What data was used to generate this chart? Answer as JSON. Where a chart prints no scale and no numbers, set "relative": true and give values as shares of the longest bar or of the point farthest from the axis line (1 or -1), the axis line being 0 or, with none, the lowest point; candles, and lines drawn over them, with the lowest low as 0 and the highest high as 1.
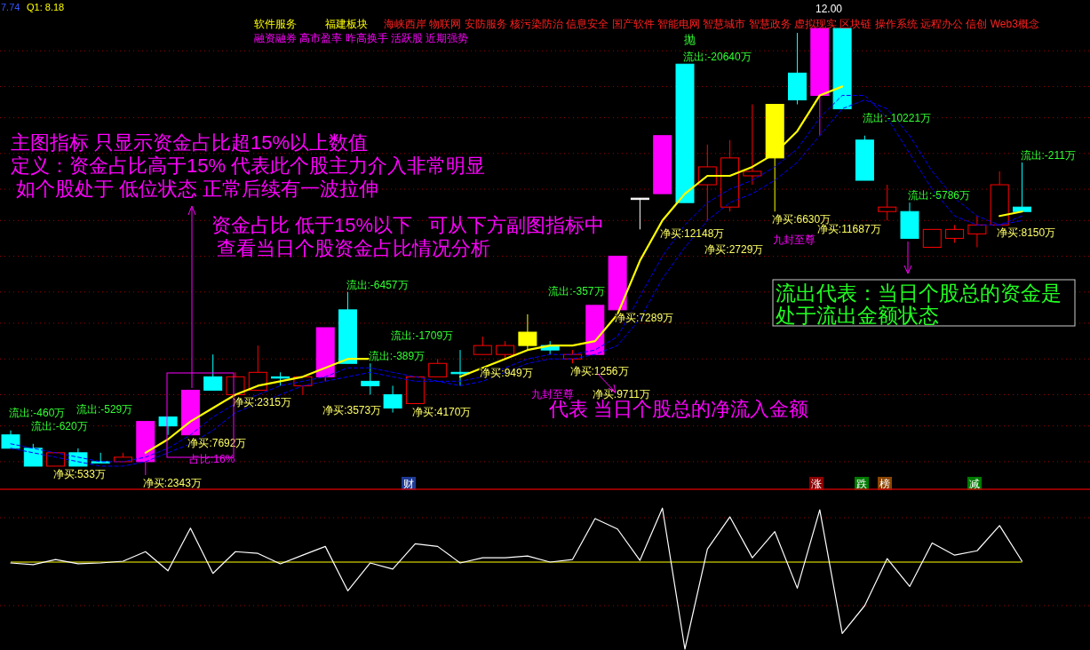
{
  "chart_data": [
    {
      "type": "candlestick",
      "relative": true,
      "ref_lines": [
        {
          "axis": "y",
          "value": 0.95,
          "color": "#a00000",
          "line_style": "dotted"
        },
        {
          "axis": "y",
          "value": 0.87,
          "color": "#a00000",
          "line_style": "dotted"
        },
        {
          "axis": "y",
          "value": 0.8,
          "color": "#a00000",
          "line_style": "dotted"
        },
        {
          "axis": "y",
          "value": 0.72,
          "color": "#a00000",
          "line_style": "dotted"
        },
        {
          "axis": "y",
          "value": 0.64,
          "color": "#a00000",
          "line_style": "dotted"
        },
        {
          "axis": "y",
          "value": 0.57,
          "color": "#a00000",
          "line_style": "dotted"
        },
        {
          "axis": "y",
          "value": 0.49,
          "color": "#a00000",
          "line_style": "dotted"
        },
        {
          "axis": "y",
          "value": 0.41,
          "color": "#a00000",
          "line_style": "dotted"
        },
        {
          "axis": "y",
          "value": 0.34,
          "color": "#a00000",
          "line_style": "dotted"
        },
        {
          "axis": "y",
          "value": 0.26,
          "color": "#a00000",
          "line_style": "dotted"
        },
        {
          "axis": "y",
          "value": 0.18,
          "color": "#a00000",
          "line_style": "dotted"
        },
        {
          "axis": "y",
          "value": 0.11,
          "color": "#a00000",
          "line_style": "dotted"
        },
        {
          "axis": "y",
          "value": 0.03,
          "color": "#a00000",
          "line_style": "dotted"
        }
      ],
      "categories": [
        null,
        null,
        null,
        null,
        null,
        null,
        null,
        null,
        null,
        null,
        null,
        null,
        null,
        null,
        null,
        null,
        null,
        null,
        null,
        null,
        null,
        null,
        null,
        null,
        null,
        null,
        null,
        null,
        null,
        null,
        null,
        null,
        null,
        null,
        null,
        null,
        null,
        null,
        null,
        null,
        null,
        null,
        null,
        null,
        null,
        null
      ],
      "ohlc": [
        [
          0.09,
          0.1,
          0.06,
          0.06
        ],
        [
          0.06,
          0.07,
          0.02,
          0.02
        ],
        [
          0.02,
          0.05,
          0.02,
          0.05
        ],
        [
          0.05,
          0.06,
          0.02,
          0.02
        ],
        [
          0.03,
          0.05,
          0.03,
          0.03
        ],
        [
          0.03,
          0.05,
          0.03,
          0.04
        ],
        [
          0.03,
          0.12,
          0.0,
          0.12
        ],
        [
          0.13,
          0.13,
          0.09,
          0.11
        ],
        [
          0.09,
          0.19,
          0.09,
          0.19
        ],
        [
          0.22,
          0.27,
          0.19,
          0.19
        ],
        [
          0.18,
          0.23,
          0.18,
          0.22
        ],
        [
          0.19,
          0.29,
          0.19,
          0.23
        ],
        [
          0.22,
          0.23,
          0.2,
          0.22
        ],
        [
          0.2,
          0.22,
          0.18,
          0.22
        ],
        [
          0.22,
          0.33,
          0.21,
          0.33
        ],
        [
          0.37,
          0.41,
          0.25,
          0.25
        ],
        [
          0.21,
          0.25,
          0.18,
          0.2
        ],
        [
          0.18,
          0.2,
          0.14,
          0.15
        ],
        [
          0.16,
          0.22,
          0.16,
          0.22
        ],
        [
          0.22,
          0.26,
          0.22,
          0.25
        ],
        [
          0.23,
          0.28,
          0.2,
          0.23
        ],
        [
          0.27,
          0.31,
          0.27,
          0.29
        ],
        [
          0.27,
          0.3,
          0.26,
          0.29
        ],
        [
          0.29,
          0.36,
          0.28,
          0.32
        ],
        [
          0.29,
          0.3,
          0.27,
          0.28
        ],
        [
          0.26,
          0.28,
          0.25,
          0.27
        ],
        [
          0.27,
          0.38,
          0.27,
          0.38
        ],
        [
          0.37,
          0.49,
          0.37,
          0.49
        ],
        [
          0.62,
          0.62,
          0.55,
          0.62
        ],
        [
          0.63,
          0.76,
          0.63,
          0.76
        ],
        [
          0.92,
          0.92,
          0.61,
          0.61
        ],
        [
          0.65,
          0.74,
          0.57,
          0.69
        ],
        [
          0.6,
          0.75,
          0.59,
          0.71
        ],
        [
          0.67,
          0.83,
          0.65,
          0.68
        ],
        [
          0.71,
          0.83,
          0.59,
          0.83
        ],
        [
          0.9,
          0.99,
          0.83,
          0.84
        ],
        [
          0.85,
          1.0,
          0.76,
          1.0
        ],
        [
          1.0,
          1.0,
          0.82,
          0.82
        ],
        [
          0.75,
          0.76,
          0.66,
          0.66
        ],
        [
          0.59,
          0.65,
          0.57,
          0.6
        ],
        [
          0.59,
          0.61,
          0.53,
          0.53
        ],
        [
          0.51,
          0.55,
          0.51,
          0.55
        ],
        [
          0.53,
          0.56,
          0.52,
          0.55
        ],
        [
          0.54,
          0.58,
          0.51,
          0.56
        ],
        [
          0.56,
          0.68,
          0.56,
          0.65
        ],
        [
          0.6,
          0.7,
          0.59,
          0.59
        ]
      ],
      "colors": [
        "#00ffff",
        "#00ffff",
        "#ff0000",
        "#00ffff",
        "#00ffff",
        "#ff0000",
        "#ff00ff",
        "#00ffff",
        "#ff00ff",
        "#00ffff",
        "#ff0000",
        "#ff0000",
        "#00ffff",
        "#ff0000",
        "#ff00ff",
        "#00ffff",
        "#00ffff",
        "#00ffff",
        "#ff0000",
        "#ff0000",
        "#00ffff",
        "#ff0000",
        "#ff0000",
        "#ffff00",
        "#00ffff",
        "#ff0000",
        "#ff00ff",
        "#ff00ff",
        "#ffffff",
        "#ff00ff",
        "#00ffff",
        "#ff0000",
        "#ff0000",
        "#ff0000",
        "#ffff00",
        "#00ffff",
        "#ff00ff",
        "#00ffff",
        "#00ffff",
        "#ff0000",
        "#00ffff",
        "#ff0000",
        "#ff0000",
        "#ff0000",
        "#ff0000",
        "#00ffff"
      ],
      "value_labels": [
        "流出:-460万",
        "流出:-620万",
        "净买:533万",
        "流出:-529万",
        null,
        null,
        "净买:2343万",
        null,
        "净买:7692万",
        null,
        "净买:2315万",
        null,
        null,
        null,
        "净买:3573万",
        "流出:-6457万",
        "流出:-389万",
        "流出:-1709万",
        "净买:4170万",
        null,
        null,
        "净买:949万",
        null,
        null,
        "流出:-357万",
        "净买:1256万",
        "净买:9711万",
        "净买:7289万",
        null,
        "净买:12148万",
        "流出:-20640万",
        "净买:2729万",
        null,
        null,
        "净买:6630万",
        null,
        "净买:11687万",
        null,
        "流出:-10221万",
        null,
        "流出:-5786万",
        null,
        null,
        null,
        "净买:8150万",
        "流出:-211万"
      ],
      "series": [
        {
          "type": "line",
          "color": "#ffff00",
          "values": [
            null,
            null,
            null,
            null,
            null,
            null,
            0.05,
            0.08,
            0.12,
            0.15,
            0.18,
            0.2,
            0.21,
            0.22,
            0.24,
            0.26,
            0.26,
            null,
            null,
            null,
            0.22,
            0.24,
            0.26,
            0.28,
            0.29,
            0.29,
            0.3,
            0.36,
            0.48,
            0.57,
            0.63,
            0.67,
            0.67,
            0.69,
            0.72,
            0.77,
            0.85,
            0.87,
            null,
            null,
            null,
            null,
            null,
            null,
            0.58,
            0.59
          ]
        },
        {
          "type": "line",
          "color": "#0000ff",
          "line_style": "dashed",
          "values": [
            0.07,
            0.06,
            0.05,
            0.04,
            0.03,
            0.03,
            0.04,
            0.06,
            0.09,
            0.13,
            0.16,
            0.18,
            0.2,
            0.21,
            0.22,
            0.24,
            0.24,
            0.23,
            0.22,
            0.21,
            0.21,
            0.22,
            0.24,
            0.26,
            0.27,
            0.27,
            0.28,
            0.31,
            0.4,
            0.49,
            0.56,
            0.61,
            0.64,
            0.66,
            0.69,
            0.73,
            0.8,
            0.85,
            0.85,
            0.8,
            0.72,
            0.64,
            0.58,
            0.56,
            0.56,
            0.58
          ]
        },
        {
          "type": "line",
          "color": "#0000ff",
          "line_style": "dashed",
          "values": [
            0.06,
            0.05,
            0.04,
            0.03,
            0.02,
            0.02,
            0.03,
            0.05,
            0.07,
            0.1,
            0.14,
            0.16,
            0.18,
            0.2,
            0.21,
            0.22,
            0.23,
            0.22,
            0.21,
            0.21,
            0.2,
            0.21,
            0.23,
            0.25,
            0.26,
            0.26,
            0.27,
            0.29,
            0.35,
            0.44,
            0.51,
            0.57,
            0.61,
            0.63,
            0.66,
            0.7,
            0.76,
            0.82,
            0.84,
            0.82,
            0.76,
            0.68,
            0.62,
            0.58,
            0.56,
            0.57
          ]
        }
      ],
      "annotations": [
        "7.74",
        "Q1: 8.18",
        "软件服务",
        "福建板块",
        "海峡西岸 物联网 安防服务 核污染防治 信息安全 国产软件 智能电网 智慧城市 智慧政务 虚拟现实 区块链 操作系统 远程办公 信创 Web3概念",
        "融资融券 高市盈率 昨高换手 活跃股 近期强势",
        "主图指标 只显示资金占比超15%以上数值",
        "定义：资金占比高于15% 代表此个股主力介入非常明显",
        " 如个股处于 低位状态 正常后续有一波拉伸",
        "资金占比 低于15%以下   可从下方副图指标中",
        " 查看当日个股资金占比情况分析",
        "代表 当日个股总的净流入金额",
        "流出代表：当日个股总的资金是处于流出金额状态",
        "占比:16%",
        "抛",
        "九封至尊",
        "九封至尊",
        "12.00",
        "财",
        "涨",
        "跌",
        "榜",
        "减"
      ]
    },
    {
      "type": "line",
      "relative": true,
      "ref_lines": [
        {
          "axis": "y",
          "value": 0.51,
          "color": "#a00000",
          "line_style": "dotted"
        },
        {
          "axis": "y",
          "value": -0.5,
          "color": "#a00000",
          "line_style": "dotted"
        },
        {
          "axis": "y",
          "value": 0,
          "color": "#ffff00",
          "line_style": "solid"
        }
      ],
      "categories": [
        null,
        null,
        null,
        null,
        null,
        null,
        null,
        null,
        null,
        null,
        null,
        null,
        null,
        null,
        null,
        null,
        null,
        null,
        null,
        null,
        null,
        null,
        null,
        null,
        null,
        null,
        null,
        null,
        null,
        null,
        null,
        null,
        null,
        null,
        null,
        null,
        null,
        null,
        null,
        null,
        null,
        null,
        null,
        null,
        null,
        null
      ],
      "series": [
        {
          "color": "#ffffff",
          "values": [
            -0.01,
            -0.03,
            0.03,
            -0.02,
            -0.01,
            0.01,
            0.12,
            -0.1,
            0.39,
            -0.13,
            0.12,
            0.1,
            -0.02,
            0.08,
            0.18,
            -0.33,
            -0.01,
            -0.08,
            0.21,
            0.18,
            -0.01,
            0.05,
            0.05,
            0.07,
            0.0,
            0.03,
            0.5,
            0.38,
            0.02,
            0.62,
            -1.0,
            0.15,
            0.52,
            0.05,
            0.35,
            -0.3,
            0.6,
            -0.82,
            -0.5,
            0.04,
            -0.28,
            0.22,
            0.08,
            0.13,
            0.42,
            0.01
          ]
        }
      ]
    }
  ]
}
